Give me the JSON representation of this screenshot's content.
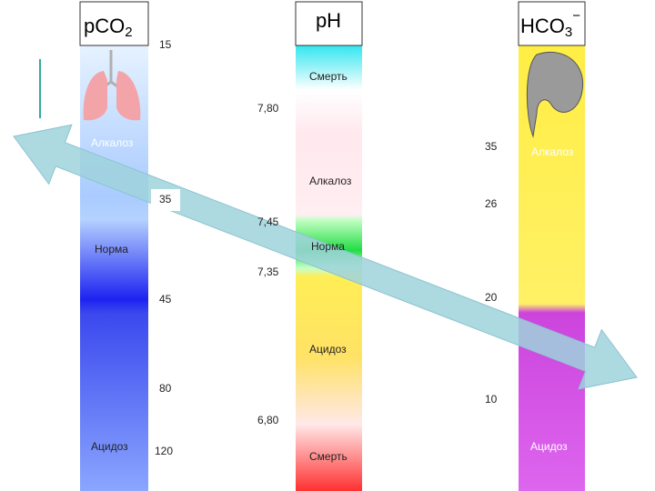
{
  "columns": [
    {
      "header": {
        "main": "pCO",
        "sub": "2"
      },
      "labels": [
        "15",
        "Алкалоз",
        "35",
        "Норма",
        "45",
        "80",
        "Ацидоз",
        "120"
      ]
    },
    {
      "header": {
        "main": "pH"
      },
      "labels": [
        "Смерть",
        "7,80",
        "Алкалоз",
        "7,45",
        "Норма",
        "7,35",
        "Ацидоз",
        "6,80",
        "Смерть"
      ]
    },
    {
      "header": {
        "main": "HCO",
        "sub": "3",
        "sup": "−"
      },
      "labels": [
        "35",
        "Алкалоз",
        "26",
        "20",
        "10",
        "Ацидоз"
      ]
    }
  ]
}
